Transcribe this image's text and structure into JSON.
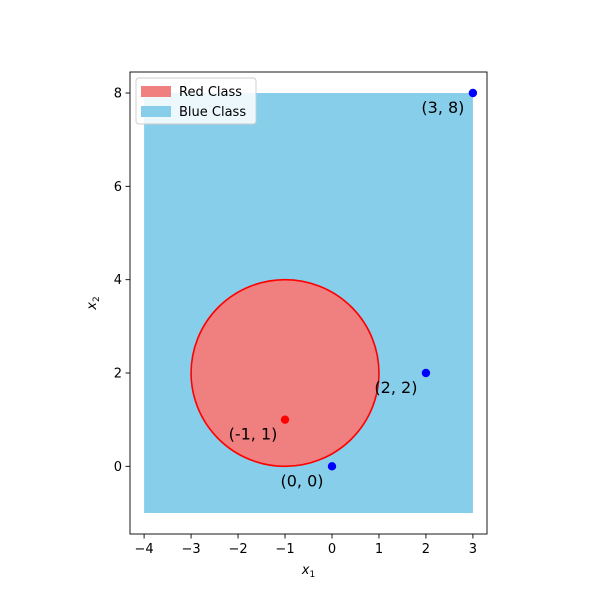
{
  "chart_data": {
    "type": "scatter",
    "xlim": [
      -4.3,
      3.3
    ],
    "ylim": [
      -1.45,
      8.45
    ],
    "x_ticks": [
      -4,
      -3,
      -2,
      -1,
      0,
      1,
      2,
      3
    ],
    "y_ticks": [
      0,
      2,
      4,
      6,
      8
    ],
    "xlabel": {
      "base": "x",
      "sub": "1"
    },
    "ylabel": {
      "base": "x",
      "sub": "2"
    },
    "grid": false,
    "legend": {
      "placement": "top-left",
      "entries": [
        {
          "label": "Red Class",
          "color": "#f08080"
        },
        {
          "label": "Blue Class",
          "color": "#87ceeb"
        }
      ]
    },
    "blue_region": {
      "x": [
        -4,
        3
      ],
      "y": [
        -1,
        8
      ],
      "color": "#87ceeb"
    },
    "red_region": {
      "center": [
        -1,
        2
      ],
      "radius": 2,
      "fill": "#f08080",
      "edge": "#ff0000"
    },
    "points": [
      {
        "x": -1,
        "y": 1,
        "color": "#ff0000",
        "label": "(-1, 1)"
      },
      {
        "x": 0,
        "y": 0,
        "color": "#0000ff",
        "label": "(0, 0)"
      },
      {
        "x": 2,
        "y": 2,
        "color": "#0000ff",
        "label": "(2, 2)"
      },
      {
        "x": 3,
        "y": 8,
        "color": "#0000ff",
        "label": "(3, 8)"
      }
    ]
  }
}
